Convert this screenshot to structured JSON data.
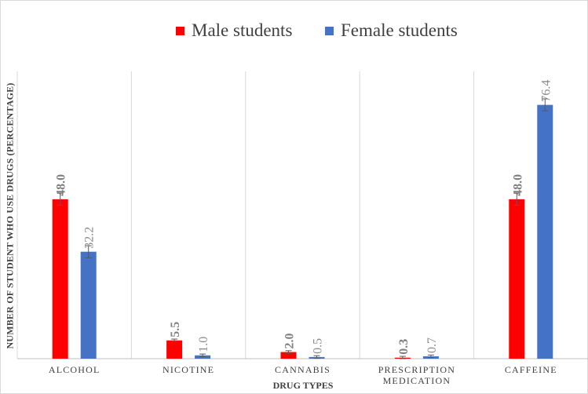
{
  "chart_data": {
    "type": "bar",
    "categories": [
      [
        "ALCOHOL"
      ],
      [
        "NICOTINE"
      ],
      [
        "CANNABIS"
      ],
      [
        "PRESCRIPTION",
        "MEDICATION"
      ],
      [
        "CAFFEINE"
      ]
    ],
    "series": [
      {
        "name": "Male students",
        "color": "#ff0000",
        "values": [
          48.0,
          5.5,
          2.0,
          0.3,
          48.0
        ],
        "labels": [
          "48.0",
          "5.5",
          "2.0",
          "0.3",
          "48.0"
        ]
      },
      {
        "name": "Female students",
        "color": "#4472c4",
        "values": [
          32.2,
          1.0,
          0.5,
          0.7,
          76.4
        ],
        "labels": [
          "32.2",
          "1.0",
          "0.5",
          "0.7",
          "76.4"
        ]
      }
    ],
    "xlabel": "DRUG TYPES",
    "ylabel": "NUMBER OF STUDENT WHO USE DRUGS (PERCENTAGE)",
    "ylim": [
      0,
      86
    ],
    "grid": false,
    "legend": "top",
    "error_bars": true
  }
}
